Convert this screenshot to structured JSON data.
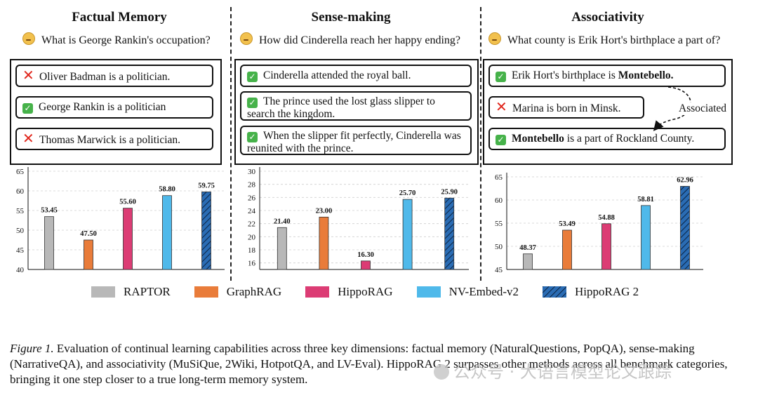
{
  "panels": [
    {
      "title": "Factual Memory",
      "question": "What is George Rankin's occupation?",
      "statements": [
        {
          "mark": "wrong",
          "text": "Oliver Badman is a politician."
        },
        {
          "mark": "correct",
          "text": "George Rankin is a politician"
        },
        {
          "mark": "wrong",
          "text": "Thomas Marwick is a politician."
        }
      ]
    },
    {
      "title": "Sense-making",
      "question": "How did Cinderella reach her happy ending?",
      "statements": [
        {
          "mark": "correct",
          "text": "Cinderella attended the royal ball."
        },
        {
          "mark": "correct",
          "text": "The prince used the lost glass slipper to search the kingdom."
        },
        {
          "mark": "correct",
          "text": "When the slipper fit perfectly, Cinderella was reunited with the prince."
        }
      ]
    },
    {
      "title": "Associativity",
      "question": "What county is Erik Hort's birthplace a part of?",
      "statements": [
        {
          "mark": "correct",
          "text_before": "Erik Hort's birthplace is ",
          "bold": "Montebello."
        },
        {
          "mark": "wrong",
          "text": "Marina is born in Minsk."
        },
        {
          "mark": "correct",
          "bold": "Montebello",
          "text_after": " is a part of Rockland County."
        }
      ],
      "arrow_label": "Associated"
    }
  ],
  "chart_data": [
    {
      "type": "bar",
      "title": "Factual Memory",
      "categories": [
        "RAPTOR",
        "GraphRAG",
        "HippoRAG",
        "NV-Embed-v2",
        "HippoRAG 2"
      ],
      "values": [
        53.45,
        47.5,
        55.6,
        58.8,
        59.75
      ],
      "value_labels": [
        "53.45",
        "47.50",
        "55.60",
        "58.80",
        "59.75"
      ],
      "ylim": [
        40,
        65
      ],
      "yticks": [
        40,
        45,
        50,
        55,
        60,
        65
      ],
      "grid": true
    },
    {
      "type": "bar",
      "title": "Sense-making",
      "categories": [
        "RAPTOR",
        "GraphRAG",
        "HippoRAG",
        "NV-Embed-v2",
        "HippoRAG 2"
      ],
      "values": [
        21.4,
        23.0,
        16.3,
        25.7,
        25.9
      ],
      "value_labels": [
        "21.40",
        "23.00",
        "16.30",
        "25.70",
        "25.90"
      ],
      "ylim": [
        15,
        30
      ],
      "yticks": [
        16,
        18,
        20,
        22,
        24,
        26,
        28,
        30
      ],
      "grid": true
    },
    {
      "type": "bar",
      "title": "Associativity",
      "categories": [
        "RAPTOR",
        "GraphRAG",
        "HippoRAG",
        "NV-Embed-v2",
        "HippoRAG 2"
      ],
      "values": [
        48.37,
        53.49,
        54.88,
        58.81,
        62.96
      ],
      "value_labels": [
        "48.37",
        "53.49",
        "54.88",
        "58.81",
        "62.96"
      ],
      "ylim": [
        45,
        65
      ],
      "yticks": [
        45,
        50,
        55,
        60,
        65
      ],
      "grid": true
    }
  ],
  "legend": [
    {
      "name": "RAPTOR",
      "color": "#b8b8b8",
      "hatch": false
    },
    {
      "name": "GraphRAG",
      "color": "#e97c3a",
      "hatch": false
    },
    {
      "name": "HippoRAG",
      "color": "#dc3c74",
      "hatch": false
    },
    {
      "name": "NV-Embed-v2",
      "color": "#4fb9ea",
      "hatch": false
    },
    {
      "name": "HippoRAG 2",
      "color": "#2a6cb4",
      "hatch": true
    }
  ],
  "caption": {
    "label": "Figure 1.",
    "text": " Evaluation of continual learning capabilities across three key dimensions: factual memory (NaturalQuestions, PopQA), sense-making (NarrativeQA), and associativity (MuSiQue, 2Wiki, HotpotQA, and LV-Eval). HippoRAG 2 surpasses other methods across all benchmark categories, bringing it one step closer to a true long-term memory system."
  },
  "watermark": "公众号 · 大语言模型论文跟踪"
}
